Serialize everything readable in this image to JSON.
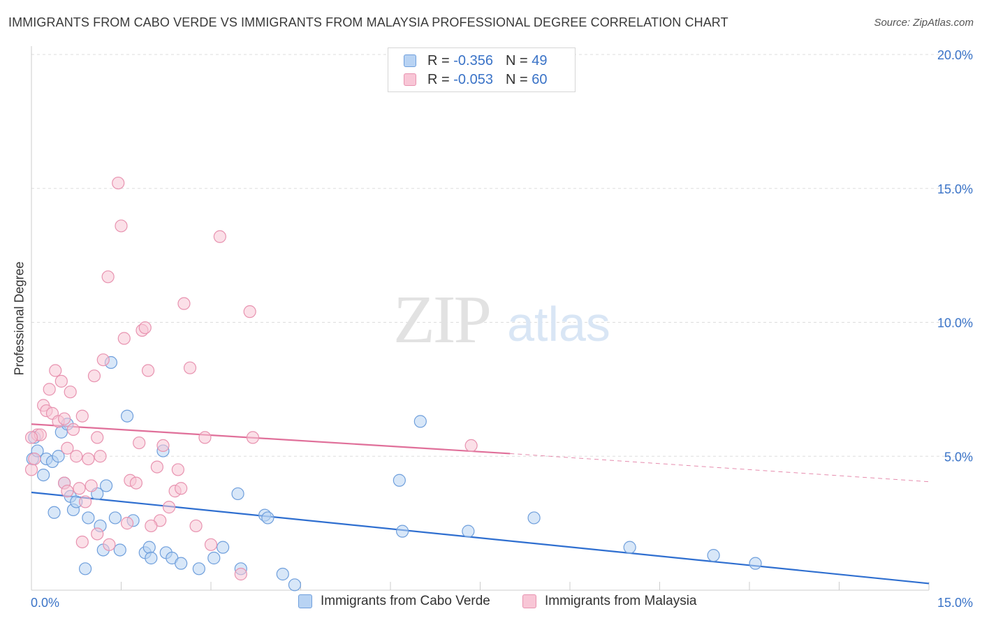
{
  "title": "IMMIGRANTS FROM CABO VERDE VS IMMIGRANTS FROM MALAYSIA PROFESSIONAL DEGREE CORRELATION CHART",
  "source": "Source: ZipAtlas.com",
  "watermark": {
    "zip": "ZIP",
    "atlas": "atlas"
  },
  "legend": {
    "rows": [
      {
        "r_label": "R =",
        "r_value": "-0.356",
        "n_label": "N =",
        "n_value": "49"
      },
      {
        "r_label": "R =",
        "r_value": "-0.053",
        "n_label": "N =",
        "n_value": "60"
      }
    ]
  },
  "colors": {
    "blue_fill": "#b8d3f3",
    "blue_stroke": "#6f9fdc",
    "blue_line": "#2f6fd0",
    "pink_fill": "#f8c6d6",
    "pink_stroke": "#e893b0",
    "pink_line": "#e0709a",
    "tick_text": "#3a73c7",
    "grid": "#dddddd"
  },
  "chart_data": {
    "type": "scatter",
    "title": "IMMIGRANTS FROM CABO VERDE VS IMMIGRANTS FROM MALAYSIA PROFESSIONAL DEGREE CORRELATION CHART",
    "xlabel": "",
    "ylabel": "Professional Degree",
    "xlim": [
      0,
      15
    ],
    "ylim": [
      0,
      20
    ],
    "x_tick_labels": [
      "0.0%",
      "15.0%"
    ],
    "y_tick_labels": [
      "5.0%",
      "10.0%",
      "15.0%",
      "20.0%"
    ],
    "y_ticks": [
      5,
      10,
      15,
      20
    ],
    "series": [
      {
        "name": "Immigrants from Cabo Verde",
        "color": "#6f9fdc",
        "points": [
          [
            0.02,
            4.9
          ],
          [
            0.05,
            5.7
          ],
          [
            0.1,
            5.2
          ],
          [
            0.2,
            4.3
          ],
          [
            0.25,
            4.9
          ],
          [
            0.35,
            4.8
          ],
          [
            0.45,
            5.0
          ],
          [
            0.5,
            5.9
          ],
          [
            0.55,
            4.0
          ],
          [
            0.6,
            6.2
          ],
          [
            0.65,
            3.5
          ],
          [
            0.7,
            3.0
          ],
          [
            0.75,
            3.3
          ],
          [
            0.38,
            2.9
          ],
          [
            0.95,
            2.7
          ],
          [
            1.1,
            3.6
          ],
          [
            1.25,
            3.9
          ],
          [
            1.33,
            8.5
          ],
          [
            1.4,
            2.7
          ],
          [
            1.6,
            6.5
          ],
          [
            1.7,
            2.6
          ],
          [
            1.15,
            2.4
          ],
          [
            1.2,
            1.5
          ],
          [
            1.48,
            1.5
          ],
          [
            1.9,
            1.4
          ],
          [
            1.97,
            1.6
          ],
          [
            2.0,
            1.2
          ],
          [
            2.2,
            5.2
          ],
          [
            2.25,
            1.4
          ],
          [
            2.35,
            1.2
          ],
          [
            2.5,
            1.0
          ],
          [
            2.8,
            0.8
          ],
          [
            3.05,
            1.2
          ],
          [
            3.2,
            1.6
          ],
          [
            3.45,
            3.6
          ],
          [
            3.5,
            0.8
          ],
          [
            3.9,
            2.8
          ],
          [
            3.95,
            2.7
          ],
          [
            4.2,
            0.6
          ],
          [
            4.4,
            0.2
          ],
          [
            0.9,
            0.8
          ],
          [
            6.15,
            4.1
          ],
          [
            6.2,
            2.2
          ],
          [
            6.5,
            6.3
          ],
          [
            7.3,
            2.2
          ],
          [
            8.4,
            2.7
          ],
          [
            10.0,
            1.6
          ],
          [
            11.4,
            1.3
          ],
          [
            12.1,
            1.0
          ]
        ]
      },
      {
        "name": "Immigrants from Malaysia",
        "color": "#e893b0",
        "points": [
          [
            0.0,
            4.5
          ],
          [
            0.05,
            4.9
          ],
          [
            0.1,
            5.8
          ],
          [
            0.15,
            5.8
          ],
          [
            0.2,
            6.9
          ],
          [
            0.25,
            6.7
          ],
          [
            0.3,
            7.5
          ],
          [
            0.35,
            6.6
          ],
          [
            0.4,
            8.2
          ],
          [
            0.45,
            6.3
          ],
          [
            0.5,
            7.8
          ],
          [
            0.55,
            6.4
          ],
          [
            0.6,
            5.3
          ],
          [
            0.65,
            7.4
          ],
          [
            0.7,
            6.0
          ],
          [
            0.75,
            5.0
          ],
          [
            0.8,
            3.8
          ],
          [
            0.85,
            6.5
          ],
          [
            0.9,
            3.3
          ],
          [
            0.95,
            4.9
          ],
          [
            1.0,
            3.9
          ],
          [
            1.05,
            8.0
          ],
          [
            1.1,
            5.7
          ],
          [
            1.15,
            5.0
          ],
          [
            1.2,
            8.6
          ],
          [
            1.28,
            11.7
          ],
          [
            1.45,
            15.2
          ],
          [
            1.5,
            13.6
          ],
          [
            1.55,
            9.4
          ],
          [
            1.6,
            2.5
          ],
          [
            1.65,
            4.1
          ],
          [
            1.75,
            4.0
          ],
          [
            1.8,
            5.5
          ],
          [
            1.85,
            9.7
          ],
          [
            1.9,
            9.8
          ],
          [
            1.95,
            8.2
          ],
          [
            2.1,
            4.6
          ],
          [
            2.15,
            2.6
          ],
          [
            2.2,
            5.4
          ],
          [
            2.3,
            3.1
          ],
          [
            2.4,
            3.7
          ],
          [
            2.45,
            4.5
          ],
          [
            2.5,
            3.8
          ],
          [
            2.55,
            10.7
          ],
          [
            2.65,
            8.3
          ],
          [
            2.75,
            2.4
          ],
          [
            2.9,
            5.7
          ],
          [
            3.0,
            1.7
          ],
          [
            3.15,
            13.2
          ],
          [
            3.5,
            0.6
          ],
          [
            3.65,
            10.4
          ],
          [
            3.7,
            5.7
          ],
          [
            0.55,
            4.0
          ],
          [
            0.6,
            3.7
          ],
          [
            0.85,
            1.8
          ],
          [
            1.1,
            2.1
          ],
          [
            1.3,
            1.7
          ],
          [
            2.0,
            2.4
          ],
          [
            0.0,
            5.7
          ],
          [
            7.35,
            5.4
          ]
        ]
      }
    ],
    "trend_lines": [
      {
        "series": "Immigrants from Cabo Verde",
        "x": [
          0,
          15
        ],
        "y": [
          3.65,
          0.25
        ],
        "style": "solid"
      },
      {
        "series": "Immigrants from Malaysia",
        "x": [
          0,
          8.0
        ],
        "y": [
          6.2,
          5.1
        ],
        "style": "solid"
      },
      {
        "series": "Immigrants from Malaysia",
        "x": [
          8.0,
          15
        ],
        "y": [
          5.1,
          4.05
        ],
        "style": "dashed"
      }
    ],
    "legend": [
      "Immigrants from Cabo Verde",
      "Immigrants from Malaysia"
    ]
  }
}
